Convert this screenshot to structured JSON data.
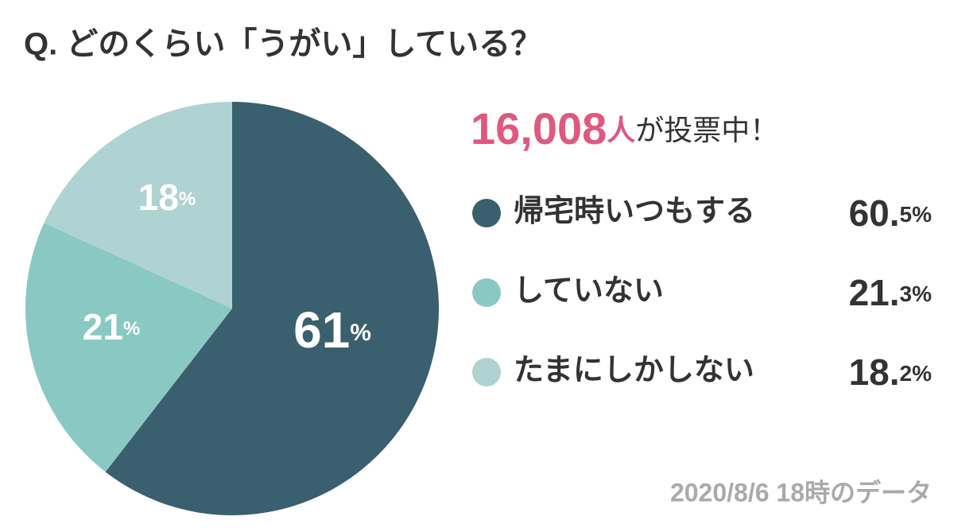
{
  "chart_data": {
    "type": "pie",
    "title": "Q. どのくらい「うがい」している？",
    "vote_count": "16,008",
    "vote_unit": "人",
    "vote_suffix": "が投票中！",
    "categories": [
      "帰宅時いつもする",
      "していない",
      "たまにしかしない"
    ],
    "values": [
      60.5,
      21.3,
      18.2
    ],
    "value_labels": [
      "61%",
      "21%",
      "18%"
    ],
    "legend_value_labels": [
      "60.5%",
      "21.3%",
      "18.2%"
    ],
    "colors": [
      "#3a5f6e",
      "#8ac9c3",
      "#aed3d2"
    ],
    "footnote": "2020/8/6 18時のデータ"
  }
}
